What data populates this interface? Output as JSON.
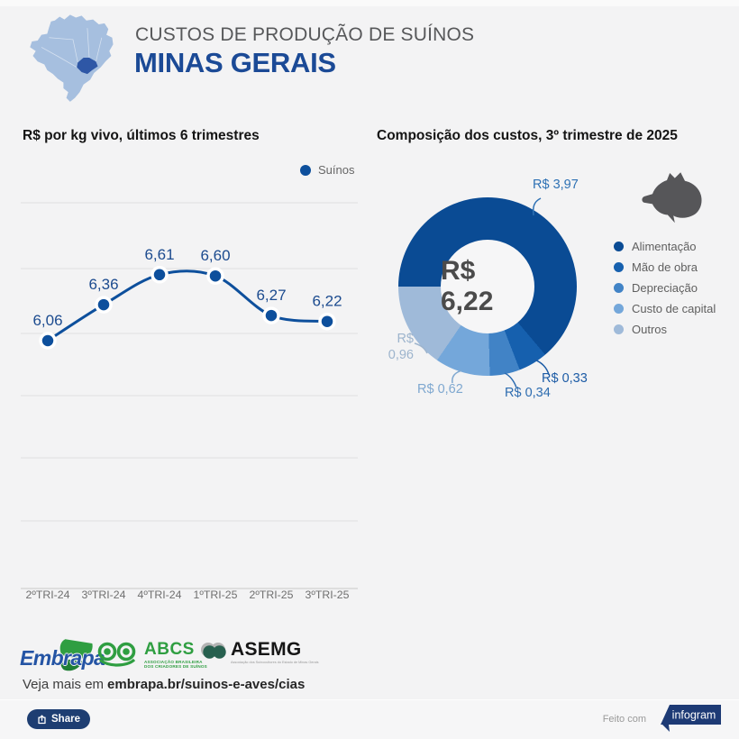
{
  "header": {
    "kicker": "CUSTOS DE PRODUÇÃO DE SUÍNOS",
    "title": "MINAS GERAIS",
    "map_region": "Minas Gerais"
  },
  "line_panel": {
    "title": "R$ por kg vivo, últimos 6 trimestres",
    "legend_label": "Suínos"
  },
  "donut_panel": {
    "title": "Composição dos custos, 3º trimestre de 2025",
    "center_label": "R$ 6,22"
  },
  "chart_data": [
    {
      "type": "line",
      "title": "R$ por kg vivo, últimos 6 trimestres",
      "categories": [
        "2ºTRI-24",
        "3ºTRI-24",
        "4ºTRI-24",
        "1ºTRI-25",
        "2ºTRI-25",
        "3ºTRI-25"
      ],
      "series": [
        {
          "name": "Suínos",
          "values": [
            6.06,
            6.36,
            6.61,
            6.6,
            6.27,
            6.22
          ],
          "labels": [
            "6,06",
            "6,36",
            "6,61",
            "6,60",
            "6,27",
            "6,22"
          ],
          "color": "#0d4f9c"
        }
      ],
      "ylabel": "R$ por kg vivo",
      "grid": true,
      "legend_position": "top-right"
    },
    {
      "type": "pie",
      "subtype": "donut",
      "title": "Composição dos custos, 3º trimestre de 2025",
      "center_label": "R$ 6,22",
      "total": 6.22,
      "start_angle_deg": 270,
      "legend_position": "right",
      "slices": [
        {
          "label": "Alimentação",
          "value": 3.97,
          "display": "R$ 3,97",
          "color": "#0a4b94",
          "label_color": "#2e71b4"
        },
        {
          "label": "Mão de obra",
          "value": 0.33,
          "display": "R$ 0,33",
          "color": "#1660ae",
          "label_color": "#1d5ca6"
        },
        {
          "label": "Depreciação",
          "value": 0.34,
          "display": "R$ 0,34",
          "color": "#4183c6",
          "label_color": "#2d6cb0"
        },
        {
          "label": "Custo de capital",
          "value": 0.62,
          "display": "R$ 0,62",
          "color": "#74a7da",
          "label_color": "#7fa8d0"
        },
        {
          "label": "Outros",
          "value": 0.96,
          "display": "R$ 0,96",
          "color": "#9fbad9",
          "label_color": "#9db4cd"
        }
      ]
    }
  ],
  "footer": {
    "logos": {
      "embrapa": "Embrapa",
      "abcs_name": "ABCS",
      "abcs_subtext": "ASSOCIAÇÃO BRASILEIRA DOS CRIADORES DE SUÍNOS",
      "asemg_name": "ASEMG",
      "asemg_subtext": "Associação dos Suinocultores do Estado de Minas Gerais"
    },
    "veja_prefix": "Veja mais em",
    "veja_link": "embrapa.br/suinos-e-aves/cias"
  },
  "bottom_bar": {
    "share_label": "Share",
    "credit_prefix": "Feito com",
    "credit_brand": "infogram"
  },
  "colors": {
    "background": "#f3f3f4",
    "accent_blue": "#0d4f9c",
    "title_blue": "#1b4a96",
    "kicker_gray": "#57585a",
    "green_logo": "#2f9e41"
  }
}
